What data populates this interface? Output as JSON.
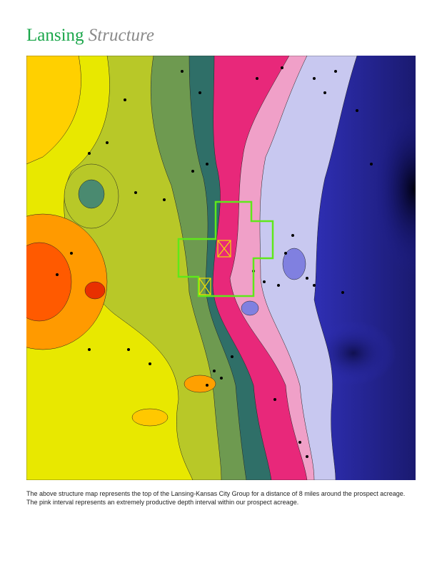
{
  "title": {
    "main": "Lansing",
    "accent": "Structure"
  },
  "caption": "The above structure map represents the top of the Lansing-Kansas City Group for a distance of 8 miles around the prospect acreage. The pink interval represents an extremely productive depth interval within our prospect acreage."
}
